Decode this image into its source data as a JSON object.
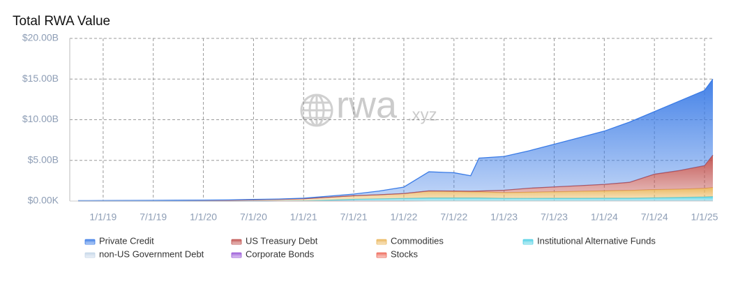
{
  "chart_data": {
    "type": "stacked_area",
    "title": "Total RWA Value",
    "watermark": "rwa",
    "watermark_suffix": ".xyz",
    "x": [
      "10/1/18",
      "1/1/19",
      "4/1/19",
      "7/1/19",
      "10/1/19",
      "1/1/20",
      "4/1/20",
      "7/1/20",
      "10/1/20",
      "1/1/21",
      "4/1/21",
      "7/1/21",
      "10/1/21",
      "1/1/22",
      "4/1/22",
      "7/1/22",
      "9/1/22",
      "10/1/22",
      "1/1/23",
      "4/1/23",
      "7/1/23",
      "10/1/23",
      "1/1/24",
      "4/1/24",
      "7/1/24",
      "10/1/24",
      "1/1/25",
      "2/1/25"
    ],
    "xlim": [
      "9/1/18",
      "2/1/25"
    ],
    "xticks": [
      "1/1/19",
      "7/1/19",
      "1/1/20",
      "7/1/20",
      "1/1/21",
      "7/1/21",
      "1/1/22",
      "7/1/22",
      "1/1/23",
      "7/1/23",
      "1/1/24",
      "7/1/24",
      "1/1/25"
    ],
    "ylim": [
      0,
      20
    ],
    "yticks": [
      {
        "value": 0,
        "label": "$0.00K"
      },
      {
        "value": 5,
        "label": "$5.00B"
      },
      {
        "value": 10,
        "label": "$10.00B"
      },
      {
        "value": 15,
        "label": "$15.00B"
      },
      {
        "value": 20,
        "label": "$20.00B"
      }
    ],
    "grid": true,
    "legend": "bottom",
    "series": [
      {
        "name": "Private Credit",
        "color": "#3a7be6",
        "values": [
          0.03,
          0.03,
          0.03,
          0.03,
          0.03,
          0.04,
          0.04,
          0.05,
          0.04,
          0.07,
          0.14,
          0.2,
          0.45,
          0.8,
          2.35,
          2.25,
          1.9,
          4.05,
          4.15,
          4.6,
          5.25,
          5.9,
          6.55,
          7.4,
          7.7,
          8.55,
          9.25,
          9.35
        ]
      },
      {
        "name": "US Treasury Debt",
        "color": "#c0504d",
        "values": [
          0,
          0,
          0,
          0,
          0,
          0,
          0,
          0,
          0,
          0,
          0,
          0,
          0,
          0,
          0.02,
          0.05,
          0.08,
          0.1,
          0.3,
          0.5,
          0.6,
          0.7,
          0.8,
          1.0,
          1.9,
          2.3,
          2.8,
          4.0
        ]
      },
      {
        "name": "Commodities",
        "color": "#eab65a",
        "values": [
          0.02,
          0.03,
          0.04,
          0.05,
          0.07,
          0.08,
          0.1,
          0.15,
          0.2,
          0.25,
          0.35,
          0.45,
          0.5,
          0.6,
          0.85,
          0.8,
          0.75,
          0.75,
          0.7,
          0.75,
          0.8,
          0.85,
          0.9,
          0.95,
          1.0,
          1.0,
          1.05,
          1.1
        ]
      },
      {
        "name": "Institutional Alternative Funds",
        "color": "#4fd0e4",
        "values": [
          0,
          0,
          0,
          0,
          0,
          0,
          0,
          0,
          0,
          0.02,
          0.1,
          0.2,
          0.25,
          0.3,
          0.35,
          0.35,
          0.35,
          0.35,
          0.3,
          0.3,
          0.3,
          0.3,
          0.3,
          0.3,
          0.35,
          0.4,
          0.45,
          0.5
        ]
      },
      {
        "name": "non-US Government Debt",
        "color": "#c5d6e8",
        "values": [
          0,
          0,
          0,
          0,
          0,
          0,
          0,
          0,
          0,
          0,
          0,
          0,
          0.01,
          0.01,
          0.01,
          0.01,
          0.01,
          0.01,
          0.01,
          0.01,
          0.02,
          0.02,
          0.02,
          0.02,
          0.02,
          0.02,
          0.02,
          0.02
        ]
      },
      {
        "name": "Corporate Bonds",
        "color": "#9a5ad8",
        "values": [
          0,
          0,
          0,
          0,
          0,
          0,
          0,
          0,
          0.01,
          0.01,
          0.01,
          0.01,
          0.01,
          0.01,
          0.01,
          0.01,
          0.01,
          0.01,
          0.01,
          0.01,
          0.01,
          0.01,
          0.01,
          0.01,
          0.01,
          0.01,
          0.01,
          0.01
        ]
      },
      {
        "name": "Stocks",
        "color": "#ee6a5a",
        "values": [
          0,
          0,
          0,
          0,
          0,
          0,
          0,
          0,
          0,
          0,
          0,
          0,
          0,
          0,
          0.01,
          0.01,
          0.01,
          0.01,
          0.01,
          0.01,
          0.01,
          0.01,
          0.02,
          0.02,
          0.02,
          0.02,
          0.02,
          0.02
        ]
      }
    ]
  }
}
